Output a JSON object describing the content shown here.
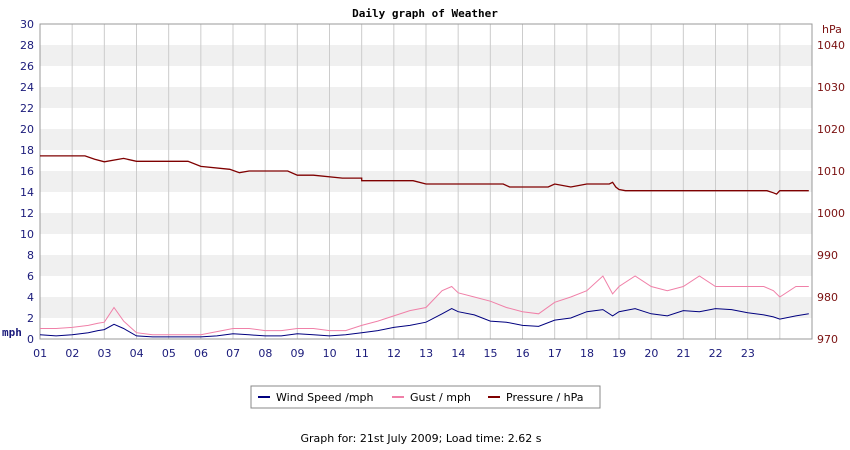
{
  "chart_data": {
    "type": "line",
    "title": "Daily graph of Weather",
    "x_ticks": [
      "01",
      "02",
      "03",
      "04",
      "05",
      "06",
      "07",
      "08",
      "09",
      "10",
      "11",
      "12",
      "13",
      "14",
      "15",
      "16",
      "17",
      "18",
      "19",
      "20",
      "21",
      "22",
      "23"
    ],
    "y_left": {
      "unit": "mph",
      "ylim": [
        0,
        30
      ],
      "ticks": [
        0,
        2,
        4,
        6,
        8,
        10,
        12,
        14,
        16,
        18,
        20,
        22,
        24,
        26,
        28,
        30
      ]
    },
    "y_right": {
      "unit": "hPa",
      "ylim": [
        970,
        1045
      ],
      "ticks": [
        970,
        980,
        990,
        1000,
        1010,
        1020,
        1030,
        1040
      ]
    },
    "grid": true,
    "legend_position": "bottom",
    "series": [
      {
        "name": "Wind Speed /mph",
        "axis": "left",
        "color": "#00007f",
        "x": [
          0,
          0.5,
          1,
          1.5,
          1.8,
          2,
          2.3,
          2.6,
          3,
          3.5,
          4,
          4.5,
          5,
          5.5,
          6,
          6.5,
          7,
          7.5,
          8,
          8.5,
          9,
          9.5,
          10,
          10.5,
          11,
          11.5,
          12,
          12.5,
          12.8,
          13,
          13.5,
          14,
          14.5,
          15,
          15.5,
          16,
          16.5,
          17,
          17.5,
          17.8,
          18,
          18.5,
          19,
          19.5,
          20,
          20.5,
          21,
          21.5,
          22,
          22.5,
          22.8,
          23,
          23.5,
          23.9
        ],
        "values": [
          0.4,
          0.3,
          0.4,
          0.6,
          0.8,
          0.9,
          1.4,
          1.0,
          0.3,
          0.2,
          0.2,
          0.2,
          0.2,
          0.3,
          0.5,
          0.4,
          0.3,
          0.3,
          0.5,
          0.4,
          0.3,
          0.4,
          0.6,
          0.8,
          1.1,
          1.3,
          1.6,
          2.4,
          2.9,
          2.6,
          2.3,
          1.7,
          1.6,
          1.3,
          1.2,
          1.8,
          2.0,
          2.6,
          2.8,
          2.2,
          2.6,
          2.9,
          2.4,
          2.2,
          2.7,
          2.6,
          2.9,
          2.8,
          2.5,
          2.3,
          2.1,
          1.9,
          2.2,
          2.4
        ]
      },
      {
        "name": "Gust / mph",
        "axis": "left",
        "color": "#f080a8",
        "x": [
          0,
          0.5,
          1,
          1.5,
          1.8,
          2,
          2.3,
          2.6,
          3,
          3.5,
          4,
          4.5,
          5,
          5.5,
          6,
          6.5,
          7,
          7.5,
          8,
          8.5,
          9,
          9.5,
          10,
          10.5,
          11,
          11.5,
          12,
          12.5,
          12.8,
          13,
          13.5,
          14,
          14.5,
          15,
          15.5,
          16,
          16.5,
          17,
          17.5,
          17.8,
          18,
          18.5,
          19,
          19.5,
          20,
          20.5,
          21,
          21.5,
          22,
          22.5,
          22.8,
          23,
          23.5,
          23.9
        ],
        "values": [
          1.0,
          1.0,
          1.1,
          1.3,
          1.5,
          1.6,
          3.0,
          1.7,
          0.6,
          0.4,
          0.4,
          0.4,
          0.4,
          0.7,
          1.0,
          1.0,
          0.8,
          0.8,
          1.0,
          1.0,
          0.8,
          0.8,
          1.3,
          1.7,
          2.2,
          2.7,
          3.0,
          4.6,
          5.0,
          4.4,
          4.0,
          3.6,
          3.0,
          2.6,
          2.4,
          3.5,
          4.0,
          4.6,
          6.0,
          4.3,
          5.0,
          6.0,
          5.0,
          4.6,
          5.0,
          6.0,
          5.0,
          5.0,
          5.0,
          5.0,
          4.6,
          4.0,
          5.0,
          5.0
        ]
      },
      {
        "name": "Pressure / hPa",
        "axis": "right",
        "color": "#7f0000",
        "x": [
          0,
          1.4,
          1.7,
          2,
          2.6,
          3,
          4.6,
          5,
          5.9,
          6.2,
          6.5,
          7.7,
          8,
          8.5,
          9.4,
          9.8,
          10,
          10,
          11.6,
          12,
          12,
          14.4,
          14.6,
          15.8,
          16,
          16.5,
          17,
          17.7,
          17.8,
          17.9,
          18,
          18.2,
          22.6,
          22.8,
          22.9,
          23.0,
          23.9
        ],
        "values": [
          1013.6,
          1013.6,
          1012.8,
          1012.2,
          1013.0,
          1012.3,
          1012.3,
          1011.1,
          1010.4,
          1009.6,
          1010.0,
          1010.0,
          1009.0,
          1009.0,
          1008.3,
          1008.3,
          1008.3,
          1007.7,
          1007.7,
          1006.9,
          1006.9,
          1006.9,
          1006.2,
          1006.2,
          1006.9,
          1006.2,
          1006.9,
          1006.9,
          1007.3,
          1006.2,
          1005.6,
          1005.3,
          1005.3,
          1004.8,
          1004.5,
          1005.3,
          1005.3
        ]
      }
    ]
  },
  "footer": "Graph for: 21st July 2009; Load time: 2.62 s"
}
